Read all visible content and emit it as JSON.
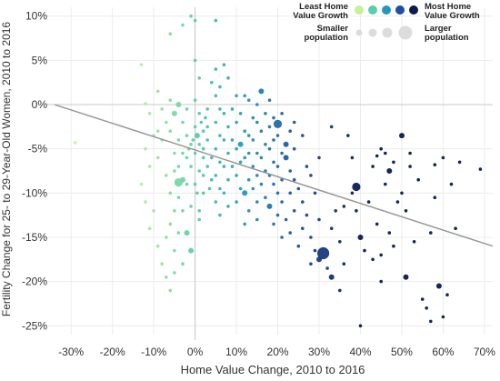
{
  "chart_data": {
    "type": "scatter",
    "xlabel": "Home Value Change, 2010 to 2016",
    "ylabel": "Fertility Change for 25- to 29-Year-Old Women, 2010 to 2016",
    "xlim": [
      -34,
      72
    ],
    "ylim": [
      -26,
      11
    ],
    "x_ticks": [
      -30,
      -20,
      -10,
      0,
      10,
      20,
      30,
      40,
      50,
      60,
      70
    ],
    "x_tick_labels": [
      "-30%",
      "-20%",
      "-10%",
      "0%",
      "10%",
      "20%",
      "30%",
      "40%",
      "50%",
      "60%",
      "70%"
    ],
    "y_ticks": [
      10,
      5,
      0,
      -5,
      -10,
      -15,
      -20,
      -25
    ],
    "y_tick_labels": [
      "10%",
      "5%",
      "0%",
      "-5%",
      "-10%",
      "-15%",
      "-20%",
      "-25%"
    ],
    "grid": true,
    "trend_line": {
      "x": [
        -34,
        72
      ],
      "y": [
        0,
        -16
      ]
    },
    "legend": {
      "placement": "top-right",
      "color_low_label_line1": "Least Home",
      "color_low_label_line2": "Value Growth",
      "color_high_label_line1": "Most Home",
      "color_high_label_line2": "Value Growth",
      "size_small_label_line1": "Smaller",
      "size_small_label_line2": "population",
      "size_large_label_line1": "Larger",
      "size_large_label_line2": "population",
      "color_steps": [
        "#c9ef9d",
        "#58cfa8",
        "#2596be",
        "#1f4e9c",
        "#0b1a4f"
      ]
    },
    "color_scale": {
      "stops": [
        {
          "x": -15,
          "color": "#c9ef9d"
        },
        {
          "x": 0,
          "color": "#58cfa8"
        },
        {
          "x": 12,
          "color": "#2596be"
        },
        {
          "x": 25,
          "color": "#1f4e9c"
        },
        {
          "x": 40,
          "color": "#0b1a4f"
        }
      ]
    },
    "points": [
      [
        -29,
        -4.3,
        1
      ],
      [
        -13,
        4.5,
        1
      ],
      [
        -12,
        0.1,
        1
      ],
      [
        -11,
        -1,
        1
      ],
      [
        -10,
        -3.5,
        1
      ],
      [
        -12,
        -5,
        1
      ],
      [
        -11,
        -7,
        1
      ],
      [
        -13,
        -9,
        1
      ],
      [
        -12,
        -11,
        1
      ],
      [
        -10,
        -12,
        1
      ],
      [
        -11,
        -14,
        1
      ],
      [
        -9,
        -16,
        1
      ],
      [
        -8,
        -18,
        1
      ],
      [
        -7,
        -19.5,
        1
      ],
      [
        -6,
        -21,
        1
      ],
      [
        -5,
        -19,
        1
      ],
      [
        -9,
        1.5,
        1
      ],
      [
        -8,
        -0.5,
        1
      ],
      [
        -7,
        -2,
        1
      ],
      [
        -8,
        -4,
        1
      ],
      [
        -9,
        -6,
        1
      ],
      [
        -7,
        -8,
        1
      ],
      [
        -6,
        -10,
        1
      ],
      [
        -5,
        -12,
        1
      ],
      [
        -6,
        -13.5,
        1
      ],
      [
        -7,
        -15,
        1
      ],
      [
        -5,
        -16.5,
        1
      ],
      [
        -3,
        -18,
        1
      ],
      [
        -4,
        -14.5,
        1
      ],
      [
        -6,
        0.5,
        1
      ],
      [
        -5,
        -1,
        2
      ],
      [
        -6,
        -3,
        1
      ],
      [
        -5,
        -5.5,
        1
      ],
      [
        -4,
        -7,
        1
      ],
      [
        -3,
        -8.5,
        2
      ],
      [
        -4,
        -10.5,
        1
      ],
      [
        -3,
        -12,
        1
      ],
      [
        -4,
        0,
        2
      ],
      [
        -2,
        -0.5,
        1
      ],
      [
        -3,
        -2,
        1
      ],
      [
        -2,
        -3.5,
        1
      ],
      [
        -1,
        -4.5,
        1
      ],
      [
        -2,
        -6,
        1
      ],
      [
        -1,
        -7,
        1
      ],
      [
        -2,
        -9,
        1
      ],
      [
        -3,
        -5.5,
        1
      ],
      [
        -4,
        -4,
        1
      ],
      [
        -5,
        -7.5,
        1
      ],
      [
        -9,
        -3,
        1
      ],
      [
        -6,
        8,
        1
      ],
      [
        -3,
        9,
        1
      ],
      [
        -4,
        -8.8,
        3
      ],
      [
        -2,
        -14.5,
        2
      ],
      [
        -1,
        -16.5,
        2
      ],
      [
        -1,
        10,
        1
      ],
      [
        0,
        9.5,
        1
      ],
      [
        0,
        5,
        1
      ],
      [
        1,
        3,
        1
      ],
      [
        0,
        0.5,
        1
      ],
      [
        1,
        -1,
        1
      ],
      [
        0,
        -2.5,
        1
      ],
      [
        2,
        -3,
        1
      ],
      [
        1,
        -4.5,
        1
      ],
      [
        0,
        -5.5,
        1
      ],
      [
        2,
        -6,
        1
      ],
      [
        1,
        -7.5,
        1
      ],
      [
        0,
        -9,
        1
      ],
      [
        2,
        -10,
        1
      ],
      [
        -1,
        -11.5,
        1
      ],
      [
        1,
        -13,
        1
      ],
      [
        -0.5,
        -4,
        1
      ],
      [
        -1.5,
        -5,
        1
      ],
      [
        2.5,
        -1.5,
        1
      ],
      [
        1.5,
        -2,
        1
      ],
      [
        3,
        -0.5,
        1
      ],
      [
        3,
        -4,
        1
      ],
      [
        2,
        -5,
        1
      ],
      [
        3,
        -7,
        1
      ],
      [
        4,
        -8.5,
        1
      ],
      [
        2,
        -8,
        1
      ],
      [
        3.5,
        -9.5,
        1
      ],
      [
        0.5,
        -10,
        1
      ],
      [
        1,
        -12,
        1
      ],
      [
        0.5,
        -3.5,
        2
      ],
      [
        5,
        9.5,
        1
      ],
      [
        5,
        4,
        1
      ],
      [
        4,
        2.5,
        1
      ],
      [
        5,
        1,
        1
      ],
      [
        6,
        -0.5,
        1
      ],
      [
        5,
        -2,
        1
      ],
      [
        6,
        -3.5,
        1
      ],
      [
        5,
        -5,
        1
      ],
      [
        6,
        -6.5,
        1
      ],
      [
        5,
        -8,
        1
      ],
      [
        6,
        -9.5,
        1
      ],
      [
        5,
        -11,
        1
      ],
      [
        6,
        -12.5,
        1
      ],
      [
        4,
        -6,
        1
      ],
      [
        3,
        -2.5,
        1
      ],
      [
        6,
        2,
        1
      ],
      [
        7,
        4.5,
        1
      ],
      [
        8,
        3,
        1
      ],
      [
        7,
        -1,
        1
      ],
      [
        8,
        -2.5,
        1
      ],
      [
        7,
        -4,
        1
      ],
      [
        8,
        -5.5,
        1
      ],
      [
        7,
        -7,
        1
      ],
      [
        8,
        -8.5,
        1
      ],
      [
        7,
        -10,
        1
      ],
      [
        8,
        -11.5,
        1
      ],
      [
        9,
        -0.5,
        1
      ],
      [
        9,
        -4,
        1
      ],
      [
        9,
        -7,
        1
      ],
      [
        10,
        1,
        1
      ],
      [
        10,
        -2,
        1
      ],
      [
        10,
        -5,
        1
      ],
      [
        10,
        -8,
        1
      ],
      [
        10,
        -11,
        1
      ],
      [
        11,
        -1,
        1
      ],
      [
        11,
        -4.5,
        2
      ],
      [
        11,
        -6.5,
        1
      ],
      [
        11,
        -9.5,
        1
      ],
      [
        12,
        1,
        1
      ],
      [
        12,
        -3,
        1
      ],
      [
        12,
        -6,
        1
      ],
      [
        12,
        -10,
        2
      ],
      [
        13,
        0.5,
        1
      ],
      [
        13,
        -3.5,
        1
      ],
      [
        13,
        -5.5,
        1
      ],
      [
        13,
        -8.5,
        1
      ],
      [
        13,
        -12,
        1
      ],
      [
        14,
        -1.5,
        1
      ],
      [
        14,
        -4,
        1
      ],
      [
        14,
        -7,
        1
      ],
      [
        14,
        -9.5,
        1
      ],
      [
        15,
        0,
        1
      ],
      [
        15,
        -2,
        1
      ],
      [
        15,
        -5.5,
        1
      ],
      [
        15,
        -8,
        1
      ],
      [
        15,
        -11,
        1
      ],
      [
        16,
        1.5,
        2
      ],
      [
        16,
        -3,
        1
      ],
      [
        16,
        -6,
        1
      ],
      [
        16,
        -9,
        1
      ],
      [
        17,
        -1,
        1
      ],
      [
        17,
        -4.5,
        1
      ],
      [
        17,
        -7.5,
        1
      ],
      [
        17,
        -10.5,
        1
      ],
      [
        18,
        0.5,
        1
      ],
      [
        18,
        -2.5,
        1
      ],
      [
        18,
        -5,
        1
      ],
      [
        18,
        -8,
        1
      ],
      [
        18,
        -11.5,
        2
      ],
      [
        19,
        -1.5,
        1
      ],
      [
        19,
        -4,
        1
      ],
      [
        19,
        -6.5,
        1
      ],
      [
        19,
        -9,
        1
      ],
      [
        20,
        -2.2,
        3
      ],
      [
        20,
        -3.5,
        1
      ],
      [
        20,
        -7,
        1
      ],
      [
        20,
        -10,
        1
      ],
      [
        20,
        -12.5,
        1
      ],
      [
        21,
        -1,
        1
      ],
      [
        21,
        -5.5,
        1
      ],
      [
        21,
        -8.5,
        1
      ],
      [
        21,
        -11,
        1
      ],
      [
        22,
        -4.5,
        2
      ],
      [
        22,
        -6,
        2
      ],
      [
        22,
        -13,
        1
      ],
      [
        23,
        -3,
        1
      ],
      [
        23,
        -7.5,
        1
      ],
      [
        23,
        -10,
        1
      ],
      [
        23,
        -14.5,
        1
      ],
      [
        24,
        -2,
        1
      ],
      [
        24,
        -5,
        1
      ],
      [
        24,
        -8.5,
        1
      ],
      [
        24,
        -12,
        1
      ],
      [
        25,
        -9.5,
        1
      ],
      [
        25,
        -16,
        1
      ],
      [
        26,
        -11,
        1
      ],
      [
        26,
        -14,
        1
      ],
      [
        27,
        -7,
        1
      ],
      [
        27,
        -12.5,
        1
      ],
      [
        28,
        -15,
        1
      ],
      [
        28,
        -18,
        1
      ],
      [
        29,
        -16.5,
        1
      ],
      [
        29,
        -10,
        1
      ],
      [
        30,
        -13,
        1
      ],
      [
        30,
        -17.5,
        2
      ],
      [
        31,
        -16.8,
        4
      ],
      [
        32,
        -18.5,
        1
      ],
      [
        33,
        -19.5,
        2
      ],
      [
        33,
        -14,
        1
      ],
      [
        34,
        -12,
        1
      ],
      [
        35,
        -15.5,
        1
      ],
      [
        36,
        -18,
        1
      ],
      [
        37,
        -3.5,
        1
      ],
      [
        38,
        -6,
        1
      ],
      [
        38,
        -10,
        1
      ],
      [
        39,
        -9.3,
        3
      ],
      [
        39,
        -12,
        1
      ],
      [
        40,
        -25,
        1
      ],
      [
        40,
        -15,
        2
      ],
      [
        41,
        -16.5,
        1
      ],
      [
        42,
        -11,
        1
      ],
      [
        43,
        -7,
        1
      ],
      [
        44,
        -13.5,
        1
      ],
      [
        45,
        -17,
        1
      ],
      [
        45,
        -20,
        1
      ],
      [
        46,
        -5.5,
        1
      ],
      [
        46,
        -9,
        1
      ],
      [
        47,
        -14.5,
        1
      ],
      [
        47,
        -7.5,
        2
      ],
      [
        48,
        -16,
        1
      ],
      [
        49,
        -11,
        1
      ],
      [
        50,
        -3.5,
        2
      ],
      [
        50,
        -10,
        1
      ],
      [
        51,
        -12,
        1
      ],
      [
        51,
        -19.5,
        2
      ],
      [
        52,
        -7,
        1
      ],
      [
        53,
        -15.5,
        1
      ],
      [
        54,
        -8.5,
        1
      ],
      [
        55,
        -22,
        1
      ],
      [
        56,
        -23,
        1
      ],
      [
        57,
        -14.5,
        1
      ],
      [
        58,
        -10.5,
        1
      ],
      [
        59,
        -20.5,
        2
      ],
      [
        60,
        -24,
        1
      ],
      [
        61,
        -21.5,
        1
      ],
      [
        62,
        -9,
        1
      ],
      [
        63,
        -14,
        1
      ],
      [
        64,
        -6.5,
        1
      ],
      [
        60,
        -6,
        1
      ],
      [
        57,
        -24.5,
        1
      ],
      [
        45,
        -5,
        1
      ],
      [
        43,
        -17.5,
        1
      ],
      [
        35,
        -21,
        1
      ],
      [
        36,
        -11.5,
        1
      ],
      [
        30,
        -6,
        1
      ],
      [
        33,
        -2.5,
        1
      ],
      [
        28,
        -8,
        1
      ],
      [
        26,
        -3.5,
        1
      ],
      [
        21,
        -15,
        1
      ],
      [
        19,
        -13.5,
        1
      ],
      [
        15,
        -13,
        1
      ],
      [
        12,
        -13.5,
        1
      ],
      [
        69,
        -7.3,
        1
      ],
      [
        58,
        -6.8,
        1
      ],
      [
        52,
        -5.5,
        1
      ],
      [
        48,
        -6.5,
        1
      ],
      [
        44,
        -5.8,
        1
      ]
    ]
  }
}
